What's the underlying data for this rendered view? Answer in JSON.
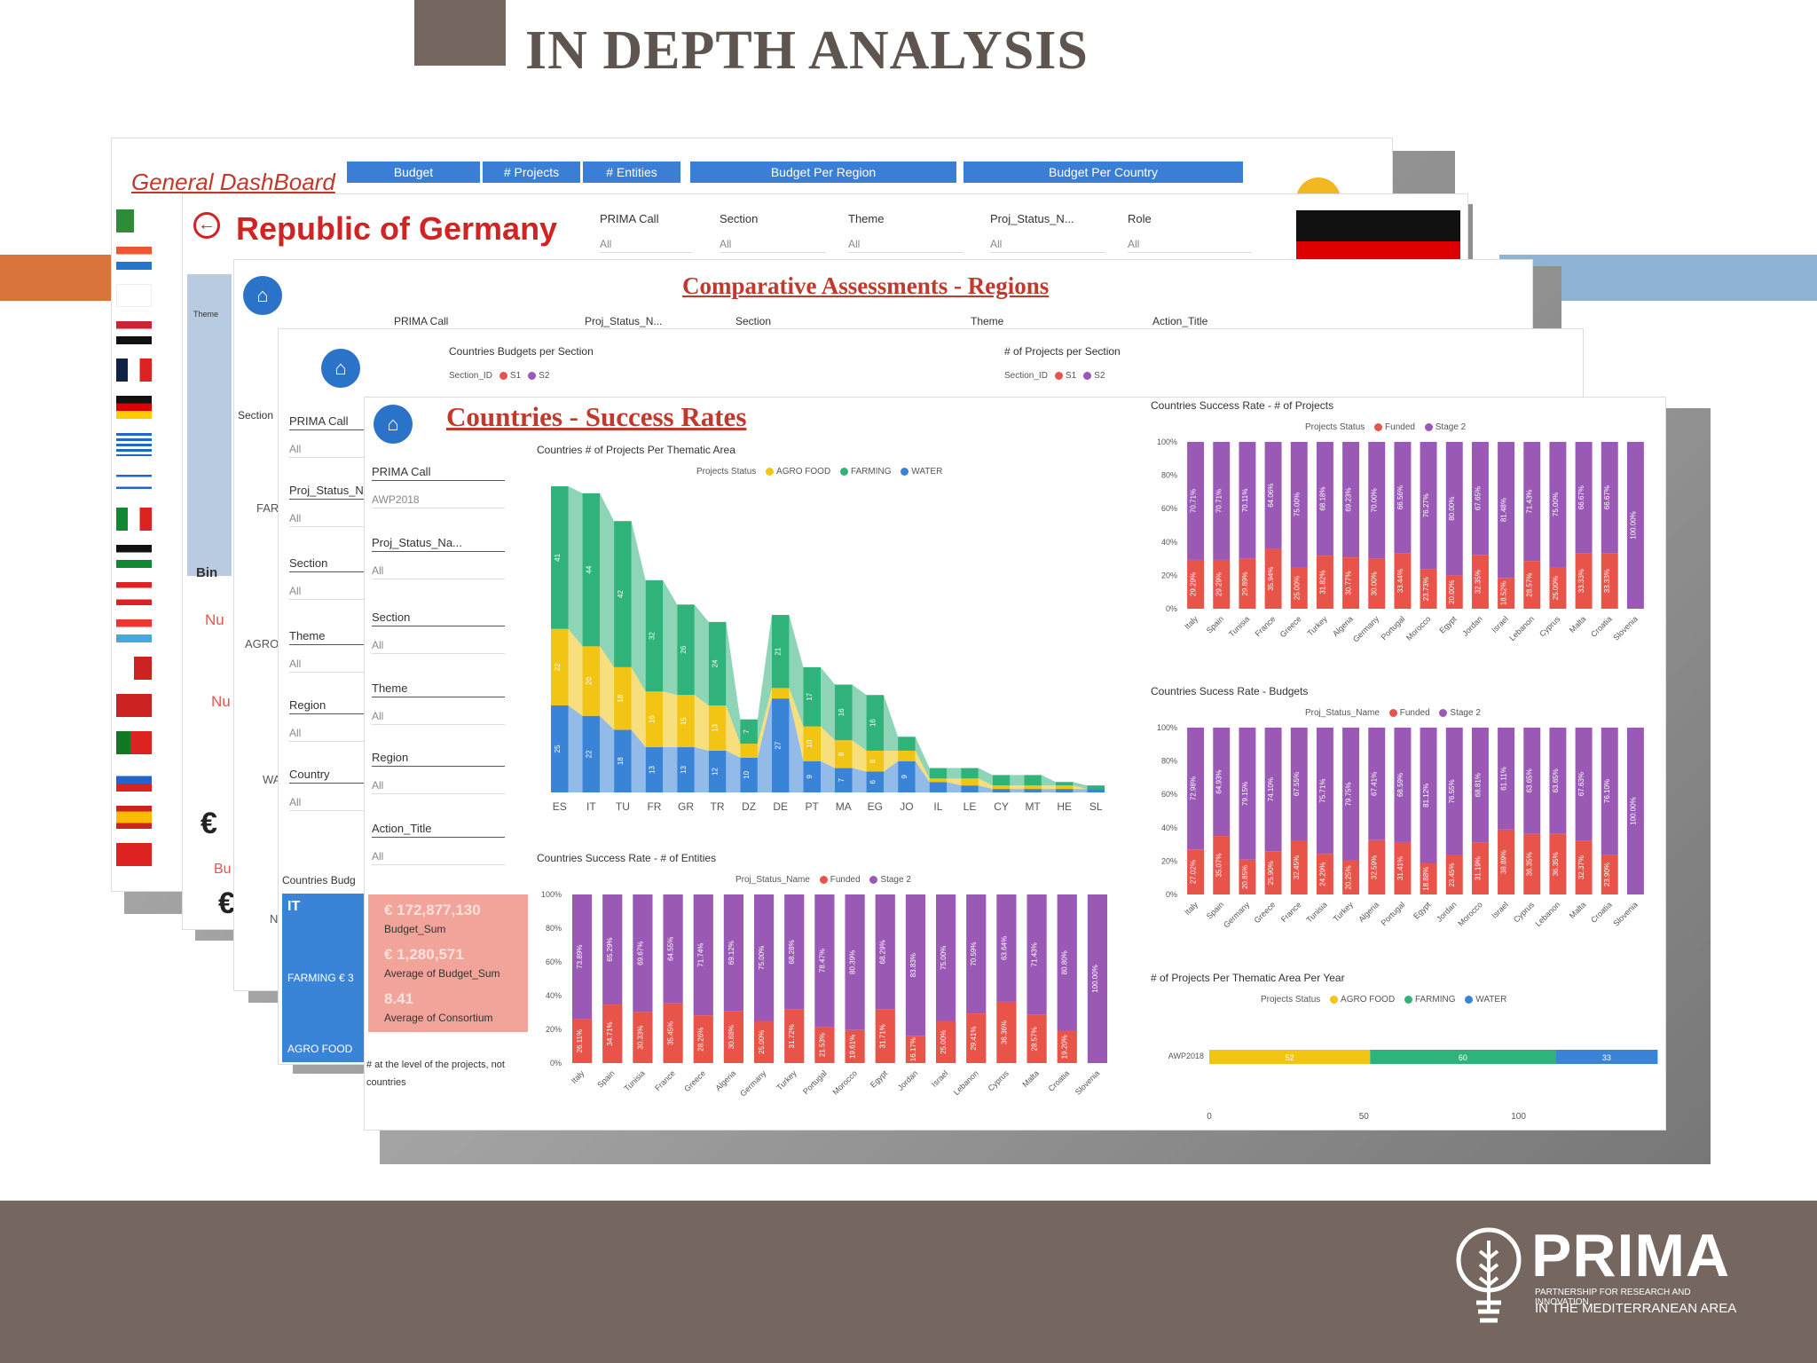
{
  "slide_title": "IN DEPTH ANALYSIS",
  "colors": {
    "brand_brown": "#756660",
    "accent_orange": "#d9753a",
    "accent_blue": "#8fb3d4",
    "funded": "#e8534a",
    "stage2": "#9b59b6",
    "agro": "#f2c514",
    "farming": "#2fb37a",
    "water": "#3a84d8"
  },
  "logo": {
    "name": "PRIMA",
    "tagline1": "PARTNERSHIP FOR RESEARCH AND INNOVATION",
    "tagline2": "IN THE MEDITERRANEAN AREA"
  },
  "general": {
    "title": "General DashBoard",
    "tabs": [
      "Budget",
      "# Projects",
      "# Entities"
    ],
    "box1": "Budget Per Region",
    "box2": "Budget Per Country"
  },
  "germany": {
    "title": "Republic of Germany",
    "filters": [
      {
        "label": "PRIMA Call",
        "value": "All"
      },
      {
        "label": "Section",
        "value": "All"
      },
      {
        "label": "Theme",
        "value": "All"
      },
      {
        "label": "Proj_Status_N...",
        "value": "All"
      },
      {
        "label": "Role",
        "value": "All"
      }
    ],
    "side_nu1": "Nu",
    "side_nu2": "Nu",
    "side_bu": "Bu",
    "euro": "€",
    "theme_lbl": "Theme",
    "bing": "Bin"
  },
  "regions": {
    "title": "Comparative Assessments - Regions",
    "filters": [
      "PRIMA Call",
      "Proj_Status_N...",
      "Section",
      "Theme",
      "Action_Title"
    ],
    "section_lbl": "Section",
    "rows": [
      "FAR",
      "AGRO",
      "WA"
    ],
    "n_lbl": "N"
  },
  "budgets_page": {
    "chart1": "Countries Budgets per Section",
    "chart2": "# of Projects per Section",
    "legend_lbl": "Section_ID",
    "s1": "S1",
    "s2": "S2",
    "slicers": [
      {
        "label": "PRIMA Call",
        "value": "All"
      },
      {
        "label": "Proj_Status_N",
        "value": "All"
      },
      {
        "label": "Section",
        "value": "All"
      },
      {
        "label": "Theme",
        "value": "All"
      },
      {
        "label": "Region",
        "value": "All"
      },
      {
        "label": "Country",
        "value": "All"
      }
    ],
    "budg_lbl": "Countries Budg",
    "it": "IT",
    "farming": "FARMING € 3",
    "agro": "AGRO FOOD"
  },
  "success": {
    "title": "Countries - Success Rates",
    "slicers": [
      {
        "label": "PRIMA Call",
        "value": "AWP2018"
      },
      {
        "label": "Proj_Status_Na...",
        "value": "All"
      },
      {
        "label": "Section",
        "value": "All"
      },
      {
        "label": "Theme",
        "value": "All"
      },
      {
        "label": "Region",
        "value": "All"
      },
      {
        "label": "Action_Title",
        "value": "All"
      }
    ],
    "kpi": [
      {
        "value": "€ 172,877,130",
        "label": "Budget_Sum"
      },
      {
        "value": "€ 1,280,571",
        "label": "Average of Budget_Sum"
      },
      {
        "value": "8.41",
        "label": "Average of Consortium"
      }
    ],
    "note": "# at the level of the projects, not countries",
    "ribbon": {
      "title": "Countries # of Projects Per Thematic Area",
      "legend_title": "Projects Status",
      "series": [
        "AGRO FOOD",
        "FARMING",
        "WATER"
      ],
      "countries": [
        "ES",
        "IT",
        "TU",
        "FR",
        "GR",
        "TR",
        "DZ",
        "DE",
        "PT",
        "MA",
        "EG",
        "JO",
        "IL",
        "LE",
        "CY",
        "MT",
        "HE",
        "SL"
      ],
      "agro": [
        22,
        20,
        18,
        16,
        15,
        13,
        4,
        3,
        10,
        8,
        6,
        3,
        1,
        2,
        1,
        1,
        1,
        0
      ],
      "farming": [
        41,
        44,
        42,
        32,
        26,
        24,
        7,
        21,
        17,
        16,
        16,
        4,
        3,
        3,
        3,
        3,
        1,
        1
      ],
      "water": [
        25,
        22,
        18,
        13,
        13,
        12,
        10,
        27,
        9,
        7,
        6,
        9,
        3,
        2,
        1,
        1,
        1,
        1
      ]
    },
    "ent": {
      "title": "Countries Success Rate - # of Entities",
      "legend_title": "Proj_Status_Name",
      "series": [
        "Funded",
        "Stage 2"
      ],
      "yticks": [
        "100%",
        "80%",
        "60%",
        "40%",
        "20%",
        "0%"
      ],
      "countries": [
        "Italy",
        "Spain",
        "Tunisia",
        "France",
        "Greece",
        "Algeria",
        "Germany",
        "Turkey",
        "Portugal",
        "Morocco",
        "Egypt",
        "Jordan",
        "Israel",
        "Lebanon",
        "Cyprus",
        "Malta",
        "Croatia",
        "Slovenia"
      ],
      "funded": [
        26.11,
        34.71,
        30.33,
        35.45,
        28.26,
        30.88,
        25.0,
        31.72,
        21.53,
        19.61,
        31.71,
        16.17,
        25.0,
        29.41,
        36.36,
        28.57,
        19.2,
        0
      ],
      "stage2": [
        73.89,
        65.29,
        69.67,
        64.55,
        71.74,
        69.12,
        75.0,
        68.28,
        78.47,
        80.39,
        68.29,
        83.83,
        75.0,
        70.59,
        63.64,
        71.43,
        80.8,
        100.0
      ]
    },
    "proj": {
      "title": "Countries Success Rate - # of Projects",
      "legend_title": "Projects Status",
      "series": [
        "Funded",
        "Stage 2"
      ],
      "yticks": [
        "100%",
        "80%",
        "60%",
        "40%",
        "20%",
        "0%"
      ],
      "countries": [
        "Italy",
        "Spain",
        "Tunisia",
        "France",
        "Greece",
        "Turkey",
        "Algeria",
        "Germany",
        "Portugal",
        "Morocco",
        "Egypt",
        "Jordan",
        "Israel",
        "Lebanon",
        "Cyprus",
        "Malta",
        "Croatia",
        "Slovenia"
      ],
      "funded": [
        29.29,
        29.29,
        29.89,
        35.94,
        25.0,
        31.82,
        30.77,
        30.0,
        33.44,
        23.73,
        20.0,
        32.35,
        18.52,
        28.57,
        25.0,
        33.33,
        33.33,
        0
      ],
      "stage2": [
        70.71,
        70.71,
        70.11,
        64.06,
        75.0,
        68.18,
        69.23,
        70.0,
        66.56,
        76.27,
        80.0,
        67.65,
        81.48,
        71.43,
        75.0,
        66.67,
        66.67,
        100.0
      ]
    },
    "bud": {
      "title": "Countries Sucess Rate - Budgets",
      "legend_title": "Proj_Status_Name",
      "series": [
        "Funded",
        "Stage 2"
      ],
      "yticks": [
        "100%",
        "80%",
        "60%",
        "40%",
        "20%",
        "0%"
      ],
      "countries": [
        "Italy",
        "Spain",
        "Germany",
        "Greece",
        "France",
        "Tunisia",
        "Turkey",
        "Algeria",
        "Portugal",
        "Egypt",
        "Jordan",
        "Morocco",
        "Israel",
        "Cyprus",
        "Lebanon",
        "Malta",
        "Croatia",
        "Slovenia"
      ],
      "funded": [
        27.02,
        35.07,
        20.85,
        25.9,
        32.45,
        24.29,
        20.25,
        32.59,
        31.41,
        18.88,
        23.45,
        31.19,
        38.89,
        36.35,
        36.35,
        32.37,
        23.9,
        0
      ],
      "stage2": [
        72.98,
        64.93,
        79.15,
        74.1,
        67.55,
        75.71,
        79.75,
        67.41,
        68.59,
        81.12,
        76.55,
        68.81,
        61.11,
        63.65,
        63.65,
        67.63,
        76.1,
        100.0
      ]
    },
    "year": {
      "title": "# of Projects Per Thematic Area Per Year",
      "legend_title": "Projects Status",
      "series": [
        "AGRO FOOD",
        "FARMING",
        "WATER"
      ],
      "row": "AWP2018",
      "values": [
        52,
        60,
        33
      ],
      "xticks": [
        "0",
        "50",
        "100"
      ],
      "xmax": 140
    }
  }
}
